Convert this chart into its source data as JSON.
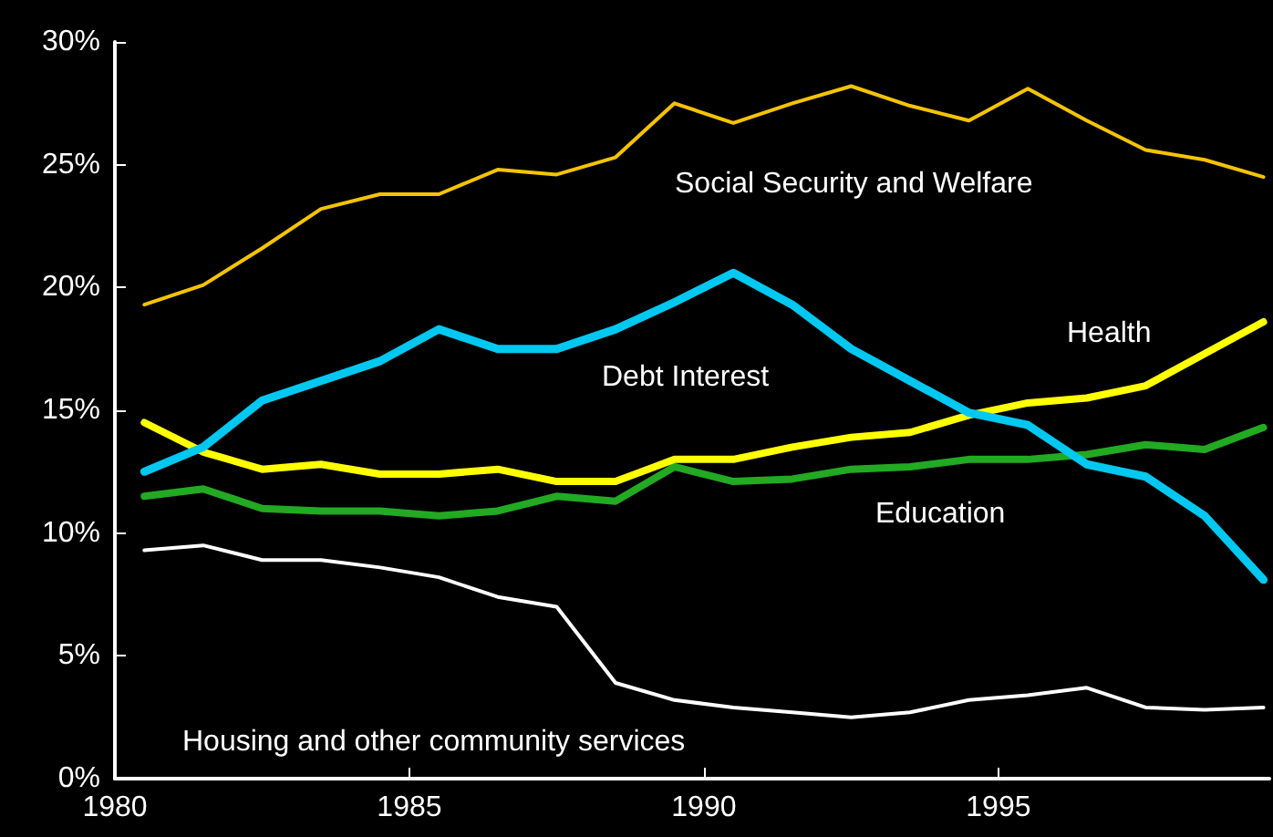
{
  "chart_data": {
    "type": "line",
    "x": [
      1980.5,
      1981.5,
      1982.5,
      1983.5,
      1984.5,
      1985.5,
      1986.5,
      1987.5,
      1988.5,
      1989.5,
      1990.5,
      1991.5,
      1992.5,
      1993.5,
      1994.5,
      1995.5,
      1996.5,
      1997.5,
      1998.5,
      1999.5
    ],
    "xlim": [
      1980,
      1999.6
    ],
    "xticks": [
      1980,
      1985,
      1990,
      1995
    ],
    "ylim": [
      0,
      30
    ],
    "yticks": [
      {
        "value": 0,
        "label": "0%"
      },
      {
        "value": 5,
        "label": "5%"
      },
      {
        "value": 10,
        "label": "10%"
      },
      {
        "value": 15,
        "label": "15%"
      },
      {
        "value": 20,
        "label": "20%"
      },
      {
        "value": 25,
        "label": "25%"
      },
      {
        "value": 30,
        "label": "30%"
      }
    ],
    "grid": false,
    "legend": false,
    "marker": "none",
    "line_style": "solid",
    "series": [
      {
        "name": "Social Security and Welfare",
        "color": "#f5c400",
        "values": [
          19.3,
          20.1,
          21.6,
          23.2,
          23.8,
          23.8,
          24.8,
          24.6,
          25.3,
          27.5,
          26.7,
          27.5,
          28.2,
          27.4,
          26.8,
          28.1,
          26.8,
          25.6,
          25.2,
          24.5
        ]
      },
      {
        "name": "Debt Interest",
        "color": "#00c8f0",
        "values": [
          12.5,
          13.5,
          15.4,
          16.2,
          17.0,
          18.3,
          17.5,
          17.5,
          18.3,
          19.4,
          20.6,
          19.3,
          17.5,
          16.2,
          14.9,
          14.4,
          12.8,
          12.3,
          10.7,
          8.1
        ]
      },
      {
        "name": "Health",
        "color": "#ffff00",
        "values": [
          14.5,
          13.3,
          12.6,
          12.8,
          12.4,
          12.4,
          12.6,
          12.1,
          12.1,
          13.0,
          13.0,
          13.5,
          13.9,
          14.1,
          14.8,
          15.3,
          15.5,
          16.0,
          17.3,
          18.6
        ]
      },
      {
        "name": "Education",
        "color": "#22aa22",
        "values": [
          11.5,
          11.8,
          11.0,
          10.9,
          10.9,
          10.7,
          10.9,
          11.5,
          11.3,
          12.7,
          12.1,
          12.2,
          12.6,
          12.7,
          13.0,
          13.0,
          13.2,
          13.6,
          13.4,
          14.3
        ]
      },
      {
        "name": "Housing and other community services",
        "color": "#ffffff",
        "values": [
          9.3,
          9.5,
          8.9,
          8.9,
          8.6,
          8.2,
          7.4,
          7.0,
          3.9,
          3.2,
          2.9,
          2.7,
          2.5,
          2.7,
          3.2,
          3.4,
          3.7,
          2.9,
          2.8,
          2.9
        ]
      }
    ]
  }
}
